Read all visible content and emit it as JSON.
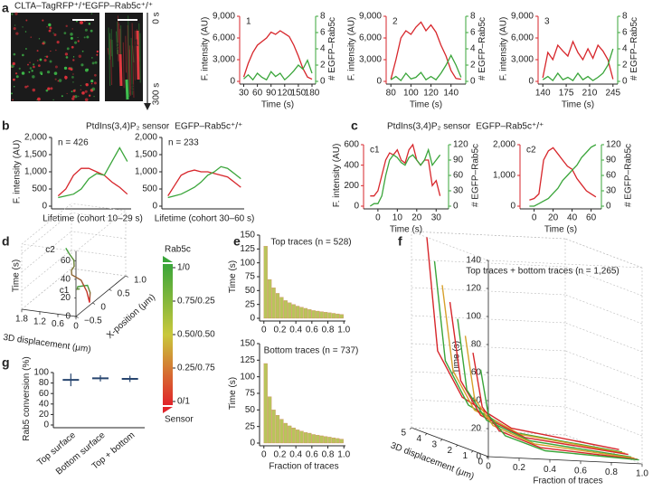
{
  "panel_labels": [
    "a",
    "b",
    "c",
    "d",
    "e",
    "f",
    "g"
  ],
  "image_panel": {
    "channel_red": "CLTA–TagRFP⁺/⁺",
    "channel_green": "EGFP–Rab5c⁺/⁺",
    "time_start": "0 s",
    "time_end": "300 s",
    "tracks": [
      "1",
      "2",
      "3"
    ]
  },
  "colorbar": {
    "top": "Rab5c",
    "bottom": "Sensor",
    "colors": [
      "#3aa53a",
      "#c9c83c",
      "#e0242a"
    ],
    "labels": [
      "1/0",
      "0.75/0.25",
      "0.50/0.50",
      "0.25/0.75",
      "0/1"
    ]
  },
  "chart_data": [
    {
      "type": "line",
      "annotation": "1",
      "xlabel": "Time (s)",
      "ylabel": "F. intensity (AU)",
      "y2label": "# EGFP–Rab5c",
      "ycolor": "#d7262b",
      "y2color": "#3aa53a",
      "xlim": [
        27,
        182
      ],
      "xticks": [
        30,
        60,
        90,
        120,
        150,
        180
      ],
      "ylim": [
        0,
        9000
      ],
      "yticks": [
        0,
        {
          "value": 3000,
          "label": "3,000"
        },
        {
          "value": 6000,
          "label": "6,000"
        },
        {
          "value": 9000,
          "label": "9,000"
        }
      ],
      "y2lim": [
        0,
        8
      ],
      "y2ticks": [
        0,
        2,
        4,
        6,
        8
      ],
      "x": [
        30,
        40,
        50,
        60,
        70,
        80,
        90,
        100,
        110,
        120,
        130,
        140,
        150,
        160,
        170,
        180
      ],
      "series": [
        {
          "color": "#d7262b",
          "values": [
            600,
            2500,
            4000,
            5000,
            5500,
            6000,
            6800,
            6500,
            7000,
            6600,
            6200,
            5000,
            3500,
            1800,
            600,
            300
          ]
        },
        {
          "color": "#3aa53a",
          "axis": "y2",
          "values": [
            0.3,
            0.8,
            0.2,
            1,
            0.5,
            0.2,
            1.2,
            0.6,
            1,
            0.2,
            0.7,
            1.3,
            2,
            1.5,
            2.6,
            1
          ]
        }
      ]
    },
    {
      "type": "line",
      "annotation": "2",
      "xlabel": "Time (s)",
      "ylabel": "F. intensity (AU)",
      "y2label": "# EGFP–Rab5c",
      "ycolor": "#d7262b",
      "y2color": "#3aa53a",
      "xlim": [
        78,
        152
      ],
      "xticks": [
        80,
        100,
        120,
        140
      ],
      "ylim": [
        0,
        9000
      ],
      "yticks": [
        0,
        {
          "value": 3000,
          "label": "3,000"
        },
        {
          "value": 6000,
          "label": "6,000"
        },
        {
          "value": 9000,
          "label": "9,000"
        }
      ],
      "y2lim": [
        0,
        8
      ],
      "y2ticks": [
        0,
        2,
        4,
        6,
        8
      ],
      "x": [
        80,
        85,
        90,
        95,
        100,
        105,
        110,
        115,
        120,
        125,
        130,
        135,
        140,
        145,
        150
      ],
      "series": [
        {
          "color": "#d7262b",
          "values": [
            300,
            3000,
            6000,
            7000,
            6500,
            7500,
            8200,
            7000,
            7800,
            6800,
            5000,
            3500,
            1500,
            400,
            300
          ]
        },
        {
          "color": "#3aa53a",
          "axis": "y2",
          "values": [
            0.2,
            0.6,
            0.1,
            1,
            0.3,
            0.5,
            1.1,
            0.2,
            0.6,
            0.2,
            1,
            2,
            3.2,
            2,
            0.5
          ]
        }
      ]
    },
    {
      "type": "line",
      "annotation": "3",
      "xlabel": "Time (s)",
      "ylabel": "F. intensity (AU)",
      "y2label": "# EGFP–Rab5c",
      "ycolor": "#d7262b",
      "y2color": "#3aa53a",
      "xlim": [
        137,
        248
      ],
      "xticks": [
        140,
        175,
        210,
        245
      ],
      "ylim": [
        0,
        9000
      ],
      "yticks": [
        0,
        {
          "value": 3000,
          "label": "3,000"
        },
        {
          "value": 6000,
          "label": "6,000"
        },
        {
          "value": 9000,
          "label": "9,000"
        }
      ],
      "y2lim": [
        0,
        8
      ],
      "y2ticks": [
        0,
        2,
        4,
        6,
        8
      ],
      "x": [
        140,
        147.5,
        155,
        162.5,
        170,
        177.5,
        185,
        192.5,
        200,
        207.5,
        215,
        222.5,
        230,
        237.5,
        245
      ],
      "series": [
        {
          "color": "#d7262b",
          "values": [
            500,
            4000,
            3000,
            5000,
            4200,
            3500,
            5500,
            4000,
            3000,
            4500,
            3200,
            5000,
            4200,
            3000,
            300
          ]
        },
        {
          "color": "#3aa53a",
          "axis": "y2",
          "values": [
            0.2,
            0.6,
            0.1,
            1,
            0.2,
            0.5,
            0.1,
            1,
            0.2,
            0.6,
            0.1,
            0.5,
            1,
            2,
            4
          ]
        }
      ]
    },
    {
      "type": "line",
      "annotation": "n = 426",
      "xlabel": "Lifetime (cohort 10–29 s)",
      "ylabel": "F. intensity (AU)",
      "xlim": [
        -0.5,
        9.5
      ],
      "ylim": [
        0,
        2000
      ],
      "yticks": [
        0,
        500,
        {
          "value": 1000,
          "label": "1,000"
        },
        {
          "value": 1500,
          "label": "1,500"
        },
        {
          "value": 2000,
          "label": "2,000"
        }
      ],
      "x": [
        0,
        1,
        2,
        3,
        4,
        5,
        6,
        7,
        8,
        9
      ],
      "series": [
        {
          "name": "PtdIns(3,4)P₂ sensor",
          "color": "#d7262b",
          "values": [
            300,
            500,
            900,
            1100,
            1100,
            1000,
            900,
            700,
            550,
            350
          ]
        },
        {
          "name": "EGFP–Rab5c⁺/⁺",
          "color": "#3aa53a",
          "values": [
            250,
            300,
            350,
            500,
            800,
            950,
            900,
            1300,
            1700,
            1300
          ]
        }
      ]
    },
    {
      "type": "line",
      "annotation": "n = 233",
      "xlabel": "Lifetime (cohort 30–60 s)",
      "xlim": [
        -0.5,
        11.5
      ],
      "ylim": [
        0,
        2000
      ],
      "yticks": [
        0,
        500,
        {
          "value": 1000,
          "label": "1,000"
        },
        {
          "value": 1500,
          "label": "1,500"
        },
        {
          "value": 2000,
          "label": "2,000"
        }
      ],
      "x": [
        0,
        1,
        2,
        3,
        4,
        5,
        6,
        7,
        8,
        9,
        10,
        11
      ],
      "series": [
        {
          "color": "#d7262b",
          "values": [
            300,
            600,
            900,
            1000,
            1050,
            1000,
            1000,
            950,
            900,
            850,
            700,
            550
          ]
        },
        {
          "color": "#3aa53a",
          "values": [
            250,
            300,
            350,
            450,
            550,
            700,
            900,
            1000,
            1150,
            1100,
            950,
            800
          ]
        }
      ]
    },
    {
      "type": "line",
      "annotation": "c1",
      "xlabel": "Time (s)",
      "ylabel": "F. intensity (AU)",
      "y2label": "# EGFP–Rab5c",
      "ycolor": "#d7262b",
      "y2color": "#3aa53a",
      "xlim": [
        -6,
        35
      ],
      "xticks": [
        0,
        10,
        20,
        30
      ],
      "ylim": [
        0,
        600
      ],
      "yticks": [
        0,
        200,
        400,
        600
      ],
      "y2lim": [
        0,
        120
      ],
      "y2ticks": [
        0,
        30,
        60,
        90,
        120
      ],
      "x": [
        -4,
        -2,
        0,
        2,
        4,
        6,
        8,
        10,
        12,
        14,
        16,
        18,
        20,
        22,
        24,
        26,
        28,
        30,
        32
      ],
      "series": [
        {
          "name": "PtdIns(3,4)P₂ sensor",
          "color": "#d7262b",
          "values": [
            100,
            100,
            150,
            300,
            450,
            520,
            500,
            550,
            450,
            420,
            550,
            600,
            450,
            400,
            450,
            450,
            200,
            250,
            100
          ]
        },
        {
          "name": "EGFP–Rab5c⁺/⁺",
          "color": "#3aa53a",
          "axis": "y2",
          "values": [
            0,
            5,
            5,
            20,
            60,
            90,
            100,
            95,
            85,
            80,
            95,
            100,
            90,
            80,
            90,
            110,
            80,
            90,
            100
          ]
        }
      ]
    },
    {
      "type": "line",
      "annotation": "c2",
      "xlabel": "Time (s)",
      "y2label": "# EGFP–Rab5c",
      "ycolor": "#d7262b",
      "y2color": "#3aa53a",
      "xlim": [
        -12,
        68
      ],
      "xticks": [
        0,
        20,
        40,
        60
      ],
      "ylim": [
        0,
        2000
      ],
      "yticks": [
        0,
        {
          "value": 1000,
          "label": "1,000"
        },
        {
          "value": 2000,
          "label": "2,000"
        }
      ],
      "y2lim": [
        0,
        120
      ],
      "y2ticks": [
        0,
        30,
        60,
        90,
        120
      ],
      "x": [
        -5,
        0,
        5,
        10,
        15,
        20,
        25,
        30,
        35,
        40,
        45,
        50,
        55,
        60,
        65
      ],
      "series": [
        {
          "color": "#d7262b",
          "values": [
            200,
            250,
            400,
            1500,
            1800,
            1900,
            1700,
            1500,
            1300,
            1200,
            900,
            700,
            500,
            400,
            300
          ]
        },
        {
          "color": "#3aa53a",
          "axis": "y2",
          "values": [
            0,
            0,
            5,
            10,
            15,
            25,
            35,
            50,
            60,
            70,
            80,
            95,
            105,
            115,
            120
          ]
        }
      ]
    },
    {
      "type": "line3d",
      "xlabel": "3D displacement (μm)",
      "ylabel": "X-position (μm)",
      "zlabel": "Time (s)",
      "xlim": [
        0,
        1.8
      ],
      "xticks": [
        1.8,
        1.2,
        0.6,
        0
      ],
      "ylim": [
        -0.5,
        1.0
      ],
      "yticks": [
        {
          "value": -0.5,
          "label": "−0.5"
        },
        0,
        0.5,
        {
          "value": 1.0,
          "label": "1.0"
        }
      ],
      "zlim": [
        0,
        70
      ],
      "zticks": [
        0,
        20,
        40,
        60
      ],
      "series": [
        {
          "name": "c1",
          "color": "#e0242a",
          "color_end": "#3aa53a",
          "x": [
            0.1,
            0.3,
            0.5,
            0.6,
            0.4,
            0.2
          ],
          "y": [
            0,
            0.2,
            0.3,
            0.1,
            -0.1,
            -0.2
          ],
          "z": [
            0,
            4,
            8,
            12,
            16,
            20
          ]
        },
        {
          "name": "c2",
          "color": "#e0242a",
          "color_end": "#3aa53a",
          "x": [
            0.1,
            0.3,
            0.6,
            0.8,
            0.7,
            0.5,
            0.4,
            0.45,
            0.5
          ],
          "y": [
            0,
            0.1,
            0.2,
            0.1,
            0,
            -0.1,
            -0.2,
            -0.3,
            -0.35
          ],
          "z": [
            0,
            8,
            16,
            24,
            32,
            40,
            50,
            60,
            67
          ]
        }
      ]
    },
    {
      "type": "bar",
      "title": "Top traces (n = 528)",
      "ylabel": "Time (s)",
      "color": "#b9c45a",
      "xlim": [
        -0.02,
        1.02
      ],
      "xticks": [
        0,
        0.2,
        0.4,
        0.6,
        0.8,
        {
          "value": 1,
          "label": "1.0"
        }
      ],
      "ylim": [
        0,
        150
      ],
      "yticks": [
        0,
        25,
        50,
        75,
        100,
        125,
        150
      ],
      "x": [
        0.025,
        0.075,
        0.125,
        0.175,
        0.225,
        0.275,
        0.325,
        0.375,
        0.425,
        0.475,
        0.525,
        0.575,
        0.625,
        0.675,
        0.725,
        0.775,
        0.825,
        0.875,
        0.925,
        0.975
      ],
      "values": [
        130,
        70,
        55,
        45,
        38,
        32,
        28,
        25,
        22,
        20,
        18,
        16,
        14,
        13,
        12,
        11,
        10,
        9,
        8,
        7
      ]
    },
    {
      "type": "bar",
      "title": "Bottom traces (n = 737)",
      "ylabel": "Time (s)",
      "xlabel": "Fraction of traces",
      "color": "#b9c45a",
      "xlim": [
        -0.02,
        1.02
      ],
      "xticks": [
        0,
        0.2,
        0.4,
        0.6,
        0.8,
        {
          "value": 1,
          "label": "1.0"
        }
      ],
      "ylim": [
        0,
        150
      ],
      "yticks": [
        0,
        25,
        50,
        75,
        100,
        125,
        150
      ],
      "x": [
        0.025,
        0.075,
        0.125,
        0.175,
        0.225,
        0.275,
        0.325,
        0.375,
        0.425,
        0.475,
        0.525,
        0.575,
        0.625,
        0.675,
        0.725,
        0.775,
        0.825,
        0.875,
        0.925,
        0.975
      ],
      "values": [
        120,
        70,
        50,
        42,
        36,
        30,
        26,
        23,
        20,
        18,
        16,
        15,
        13,
        12,
        11,
        10,
        9,
        8,
        7,
        6
      ]
    },
    {
      "type": "line3d",
      "title": "Top traces + bottom traces (n = 1,265)",
      "xlabel": "Fraction of traces",
      "ylabel": "3D displacement (μm)",
      "zlabel": "Time (s)",
      "xlim": [
        0,
        1
      ],
      "xticks": [
        0,
        0.2,
        0.4,
        0.6,
        0.8,
        {
          "value": 1,
          "label": "1.0"
        }
      ],
      "ylim": [
        0,
        5
      ],
      "yticks": [
        5,
        4,
        3,
        2,
        1,
        0
      ],
      "zlim": [
        0,
        140
      ],
      "zticks": [
        0,
        20,
        40,
        60,
        80,
        100,
        120,
        140
      ],
      "series": [
        {
          "color": "#d7262b",
          "x": [
            0,
            0.05,
            0.15,
            0.4,
            1.0
          ],
          "y": [
            4,
            3.8,
            3.2,
            2.5,
            1.5
          ],
          "z": [
            140,
            60,
            30,
            12,
            4
          ]
        },
        {
          "color": "#3aa53a",
          "x": [
            0,
            0.05,
            0.15,
            0.4,
            1.0
          ],
          "y": [
            3.5,
            3.3,
            2.8,
            2.2,
            1.3
          ],
          "z": [
            125,
            55,
            26,
            10,
            3
          ]
        },
        {
          "color": "#d7a02b",
          "x": [
            0,
            0.05,
            0.15,
            0.4,
            1.0
          ],
          "y": [
            3,
            2.8,
            2.4,
            1.9,
            1.1
          ],
          "z": [
            110,
            50,
            24,
            10,
            3
          ]
        },
        {
          "color": "#d7262b",
          "x": [
            0,
            0.05,
            0.15,
            0.4,
            1.0
          ],
          "y": [
            2.5,
            2.3,
            2,
            1.6,
            0.9
          ],
          "z": [
            100,
            45,
            22,
            9,
            3
          ]
        },
        {
          "color": "#3aa53a",
          "x": [
            0,
            0.05,
            0.15,
            0.4,
            1.0
          ],
          "y": [
            2,
            1.9,
            1.6,
            1.3,
            0.7
          ],
          "z": [
            90,
            40,
            20,
            8,
            2
          ]
        },
        {
          "color": "#d7a02b",
          "x": [
            0,
            0.05,
            0.15,
            0.4,
            1.0
          ],
          "y": [
            1.5,
            1.4,
            1.2,
            1,
            0.5
          ],
          "z": [
            80,
            36,
            18,
            7,
            2
          ]
        },
        {
          "color": "#d7262b",
          "x": [
            0,
            0.05,
            0.15,
            0.4,
            1.0
          ],
          "y": [
            1,
            0.9,
            0.8,
            0.6,
            0.3
          ],
          "z": [
            70,
            32,
            16,
            6,
            2
          ]
        },
        {
          "color": "#3aa53a",
          "x": [
            0,
            0.05,
            0.15,
            0.4,
            1.0
          ],
          "y": [
            0.5,
            0.5,
            0.4,
            0.3,
            0.2
          ],
          "z": [
            60,
            28,
            14,
            5,
            2
          ]
        }
      ]
    },
    {
      "type": "errorbar",
      "ylabel": "Rab5 conversion (%)",
      "categories": [
        "Top surface",
        "Bottom surface",
        "Top + bottom"
      ],
      "values": [
        86,
        89,
        88
      ],
      "errors": [
        12,
        6,
        6
      ],
      "color": "#27456f",
      "ylim": [
        0,
        100
      ],
      "yticks": [
        0,
        20,
        40,
        60,
        80,
        100
      ]
    }
  ]
}
